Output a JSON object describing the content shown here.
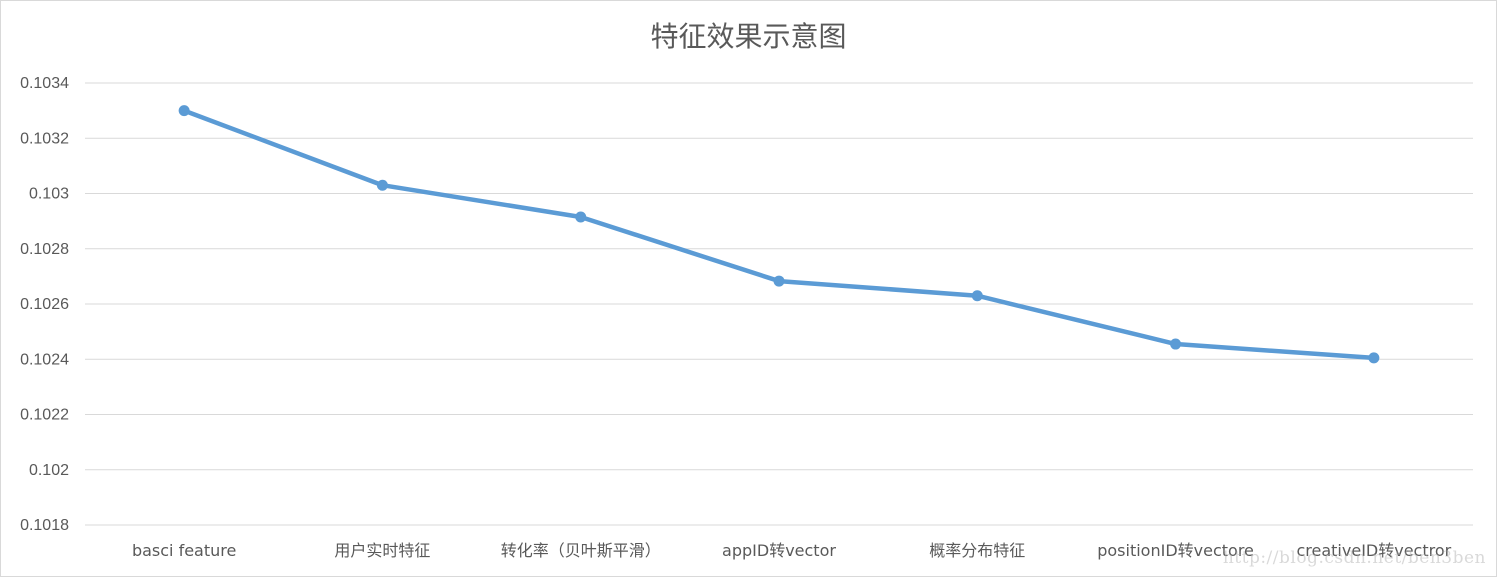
{
  "chart_data": {
    "type": "line",
    "title": "特征效果示意图",
    "xlabel": "",
    "ylabel": "",
    "categories": [
      "basci feature",
      "用户实时特征",
      "转化率（贝叶斯平滑）",
      "appID转vector",
      "概率分布特征",
      "positionID转vectore",
      "creativeID转vectror"
    ],
    "series": [
      {
        "values": [
          0.1033,
          0.10303,
          0.102915,
          0.102683,
          0.10263,
          0.102455,
          0.102405
        ],
        "color": "#5b9bd5"
      }
    ],
    "ylim": [
      0.1018,
      0.1034
    ],
    "yticks": [
      0.1018,
      0.102,
      0.1022,
      0.1024,
      0.1026,
      0.1028,
      0.103,
      0.1032,
      0.1034
    ],
    "ytick_labels": [
      "0.1018",
      "0.102",
      "0.1022",
      "0.1024",
      "0.1026",
      "0.1028",
      "0.103",
      "0.1032",
      "0.1034"
    ],
    "grid": true,
    "gridline_color": "#d9d9d9",
    "legend": "none",
    "marker": "circle"
  },
  "watermark": "http://blog.csdn.net/ben3ben"
}
